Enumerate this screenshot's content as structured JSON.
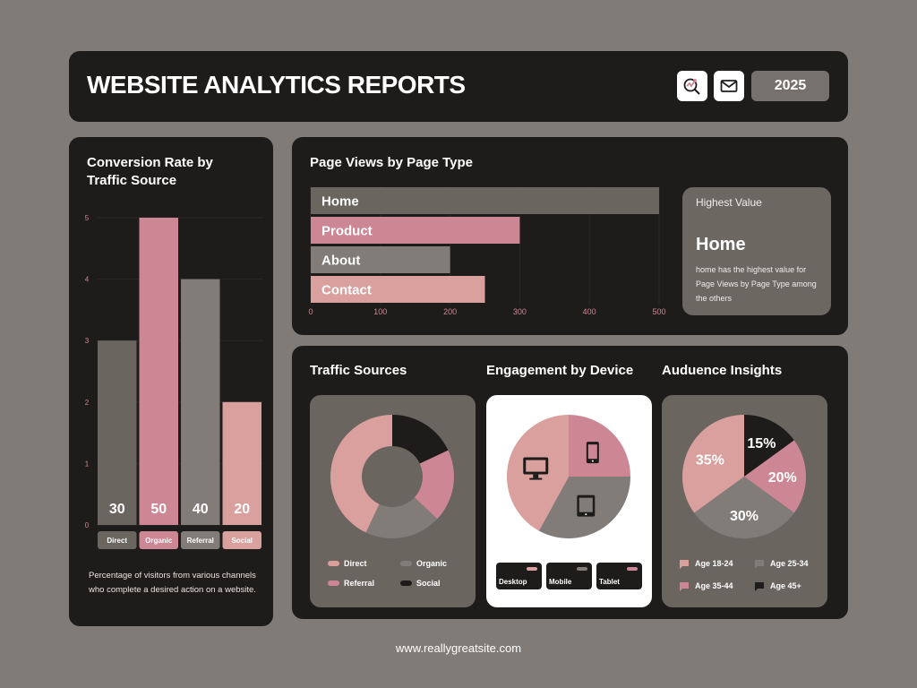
{
  "header": {
    "title": "WEBSITE ANALYTICS REPORTS",
    "year": "2025",
    "icons": [
      "analytics-search-icon",
      "mail-icon"
    ]
  },
  "colors": {
    "background": "#817b77",
    "panel": "#1e1c1b",
    "pink": "#cd8794",
    "light_pink": "#d9a09d",
    "dark_grey": "#6b6560",
    "mid_grey": "#827c78"
  },
  "conversion": {
    "title": "Conversion Rate by Traffic Source",
    "description": "Percentage of visitors from various channels who complete a desired action on a website."
  },
  "page_views": {
    "title": "Page Views by Page Type",
    "highest": {
      "label": "Highest Value",
      "value": "Home",
      "description": "home has the highest value for Page Views by Page Type among the others"
    }
  },
  "traffic": {
    "title": "Traffic Sources"
  },
  "engagement": {
    "title": "Engagement by Device",
    "devices": [
      "Desktop",
      "Mobile",
      "Tablet"
    ]
  },
  "audience": {
    "title": "Auduence Insights"
  },
  "footer": {
    "url": "www.reallygreatsite.com"
  },
  "chart_data": [
    {
      "type": "bar",
      "categories": [
        "Direct",
        "Organic",
        "Referral",
        "Social"
      ],
      "values": [
        3,
        5,
        4,
        2
      ],
      "data_labels": [
        "30",
        "50",
        "40",
        "20"
      ],
      "ylim": [
        0,
        5
      ],
      "y_ticks": [
        "0",
        "1",
        "2",
        "3",
        "4",
        "5"
      ],
      "colors": [
        "#6b6560",
        "#cd8794",
        "#827c78",
        "#d9a09d"
      ]
    },
    {
      "type": "bar",
      "orientation": "horizontal",
      "categories": [
        "Home",
        "Product",
        "About",
        "Contact"
      ],
      "values": [
        500,
        300,
        200,
        250
      ],
      "xlim": [
        0,
        500
      ],
      "x_ticks": [
        "0",
        "100",
        "200",
        "300",
        "400",
        "500"
      ],
      "colors": [
        "#6b6560",
        "#cd8794",
        "#827c78",
        "#d9a09d"
      ]
    },
    {
      "type": "pie",
      "style": "donut",
      "labels": [
        "Social",
        "Referral",
        "Organic",
        "Direct"
      ],
      "values": [
        18,
        19,
        20,
        43
      ],
      "colors": [
        "#1e1c1b",
        "#cd8794",
        "#827c78",
        "#d9a09d"
      ],
      "legend": [
        "Direct",
        "Organic",
        "Referral",
        "Social"
      ],
      "legend_colors": [
        "#d9a09d",
        "#827c78",
        "#cd8794",
        "#1e1c1b"
      ]
    },
    {
      "type": "pie",
      "labels": [
        "Mobile",
        "Tablet",
        "Desktop"
      ],
      "values": [
        25,
        33,
        42
      ],
      "colors": [
        "#cd8794",
        "#827c78",
        "#d9a09d"
      ],
      "icons": [
        "mobile-icon",
        "tablet-icon",
        "desktop-icon"
      ],
      "legend_colors": [
        "#d9a09d",
        "#827c78",
        "#cd8794"
      ]
    },
    {
      "type": "pie",
      "labels": [
        "Age 45+",
        "Age 35-44",
        "Age 25-34",
        "Age 18-24"
      ],
      "values": [
        15,
        20,
        30,
        35
      ],
      "data_labels": [
        "15%",
        "20%",
        "30%",
        "35%"
      ],
      "colors": [
        "#1e1c1b",
        "#cd8794",
        "#827c78",
        "#d9a09d"
      ],
      "legend": [
        "Age 18-24",
        "Age 25-34",
        "Age 35-44",
        "Age 45+"
      ],
      "legend_colors": [
        "#d9a09d",
        "#827c78",
        "#cd8794",
        "#1e1c1b"
      ]
    }
  ]
}
